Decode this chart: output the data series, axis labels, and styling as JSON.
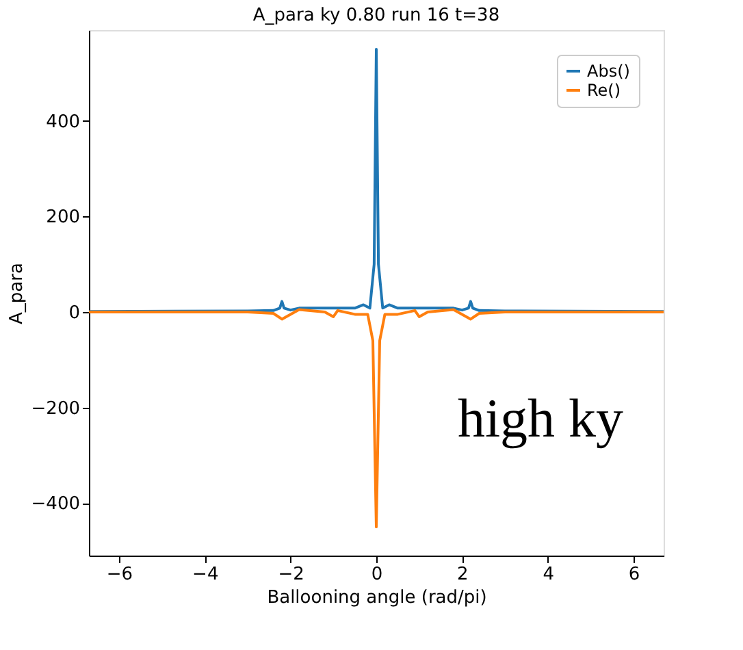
{
  "chart_data": {
    "type": "line",
    "title": "A_para ky 0.80 run 16 t=38",
    "xlabel": "Ballooning angle (rad/pi)",
    "ylabel": "A_para",
    "annotations": [
      "high ky"
    ],
    "xlim": [
      -6.7,
      6.7
    ],
    "ylim": [
      -510,
      590
    ],
    "xticks": [
      {
        "value": -6,
        "label": "−6"
      },
      {
        "value": -4,
        "label": "−4"
      },
      {
        "value": -2,
        "label": "−2"
      },
      0,
      2,
      4,
      6
    ],
    "yticks": [
      {
        "value": -400,
        "label": "−400"
      },
      {
        "value": -200,
        "label": "−200"
      },
      0,
      200,
      400
    ],
    "grid": false,
    "legend": "top right",
    "marker": "none",
    "line_style": "solid",
    "series": [
      {
        "name": "Abs()",
        "color": "#1f77b4",
        "x": [
          -6.7,
          -3,
          -2.4,
          -2.25,
          -2.2,
          -2.15,
          -2.0,
          -1.8,
          -1.0,
          -0.5,
          -0.3,
          -0.15,
          -0.05,
          0,
          0.05,
          0.15,
          0.3,
          0.5,
          1.0,
          1.8,
          2.0,
          2.15,
          2.2,
          2.25,
          2.4,
          3,
          6.7
        ],
        "values": [
          1,
          2,
          3,
          8,
          22,
          8,
          4,
          8,
          8,
          8,
          15,
          8,
          100,
          550,
          100,
          8,
          15,
          8,
          8,
          8,
          4,
          8,
          22,
          8,
          3,
          2,
          1
        ]
      },
      {
        "name": "Re()",
        "color": "#ff7f0e",
        "x": [
          -6.7,
          -3,
          -2.4,
          -2.2,
          -2.0,
          -1.8,
          -1.2,
          -1.0,
          -0.9,
          -0.5,
          -0.2,
          -0.08,
          0,
          0.08,
          0.2,
          0.5,
          0.9,
          1.0,
          1.2,
          1.8,
          2.0,
          2.2,
          2.4,
          3,
          6.7
        ],
        "values": [
          0,
          0,
          -3,
          -15,
          -5,
          5,
          0,
          -10,
          3,
          -5,
          -5,
          -60,
          -450,
          -60,
          -5,
          -5,
          3,
          -10,
          0,
          5,
          -5,
          -15,
          -3,
          0,
          0
        ]
      }
    ]
  }
}
